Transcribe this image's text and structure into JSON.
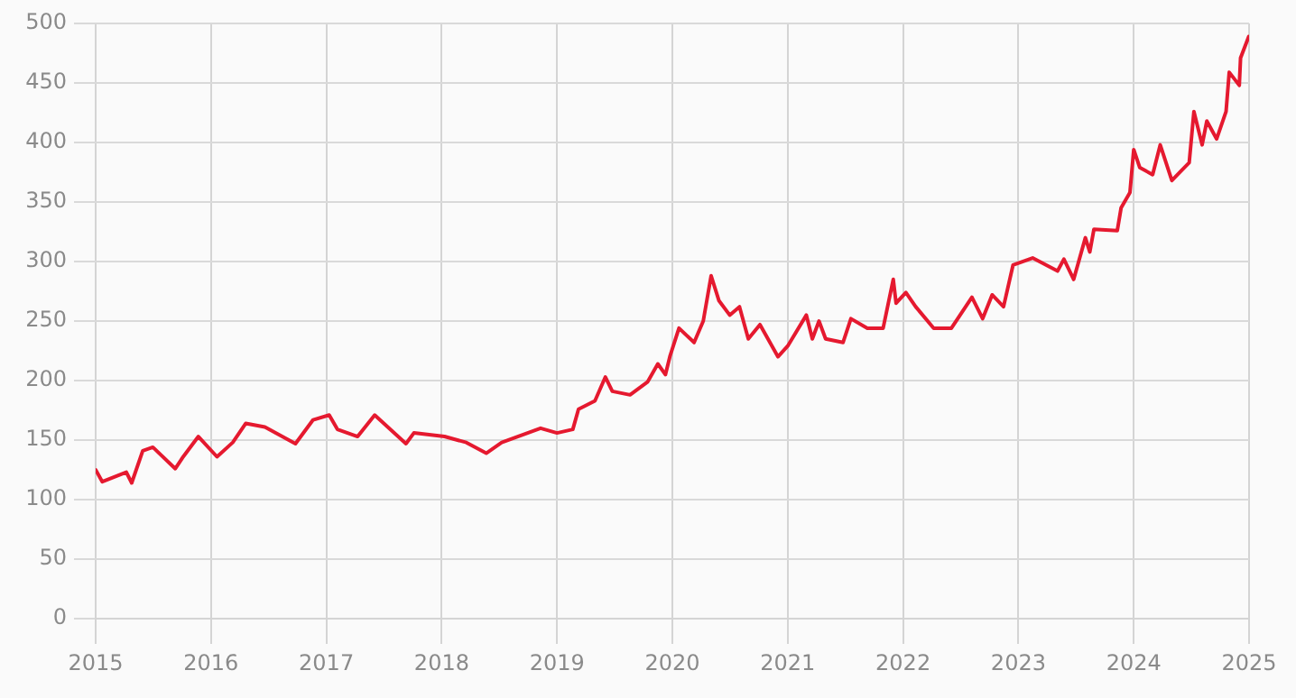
{
  "chart_data": {
    "type": "line",
    "x": [
      "2015-01-01",
      "2015-01-22",
      "2015-04-08",
      "2015-04-25",
      "2015-05-30",
      "2015-07-01",
      "2015-09-10",
      "2015-10-05",
      "2015-11-22",
      "2016-01-20",
      "2016-03-10",
      "2016-04-20",
      "2016-06-20",
      "2016-09-25",
      "2016-11-20",
      "2017-01-10",
      "2017-02-05",
      "2017-04-10",
      "2017-06-03",
      "2017-09-10",
      "2017-10-05",
      "2018-01-10",
      "2018-03-20",
      "2018-05-22",
      "2018-07-10",
      "2018-11-10",
      "2019-01-01",
      "2019-02-20",
      "2019-03-10",
      "2019-05-01",
      "2019-06-03",
      "2019-06-25",
      "2019-08-20",
      "2019-10-15",
      "2019-11-16",
      "2019-12-10",
      "2019-12-25",
      "2020-01-22",
      "2020-03-10",
      "2020-04-08",
      "2020-05-03",
      "2020-05-28",
      "2020-07-01",
      "2020-08-01",
      "2020-08-29",
      "2020-10-05",
      "2020-12-01",
      "2021-01-01",
      "2021-03-01",
      "2021-03-20",
      "2021-04-10",
      "2021-05-01",
      "2021-06-25",
      "2021-07-20",
      "2021-09-10",
      "2021-10-30",
      "2021-12-01",
      "2021-12-10",
      "2022-01-10",
      "2022-02-10",
      "2022-04-08",
      "2022-06-03",
      "2022-08-07",
      "2022-09-10",
      "2022-10-10",
      "2022-11-15",
      "2022-12-15",
      "2023-02-15",
      "2023-05-05",
      "2023-05-25",
      "2023-06-25",
      "2023-08-01",
      "2023-08-15",
      "2023-08-28",
      "2023-11-10",
      "2023-11-22",
      "2023-12-20",
      "2024-01-01",
      "2024-01-20",
      "2024-03-01",
      "2024-03-25",
      "2024-05-01",
      "2024-05-30",
      "2024-06-25",
      "2024-07-10",
      "2024-08-05",
      "2024-08-20",
      "2024-09-20",
      "2024-10-20",
      "2024-10-30",
      "2024-12-01",
      "2024-12-05",
      "2024-12-31"
    ],
    "series": [
      {
        "color": "#e5192f",
        "values": [
          125,
          115,
          123,
          114,
          141,
          144,
          126,
          136,
          153,
          136,
          148,
          164,
          161,
          147,
          167,
          171,
          159,
          153,
          171,
          147,
          156,
          153,
          148,
          139,
          148,
          160,
          156,
          159,
          176,
          183,
          203,
          191,
          188,
          199,
          214,
          205,
          221,
          244,
          232,
          250,
          288,
          267,
          255,
          262,
          235,
          247,
          220,
          229,
          255,
          235,
          250,
          235,
          232,
          252,
          244,
          244,
          285,
          265,
          274,
          262,
          244,
          244,
          270,
          252,
          272,
          262,
          297,
          303,
          292,
          302,
          285,
          320,
          308,
          327,
          326,
          345,
          358,
          394,
          379,
          373,
          398,
          368,
          376,
          383,
          426,
          398,
          418,
          403,
          426,
          459,
          448,
          471,
          489
        ]
      }
    ],
    "xlim": [
      "2015",
      "2025"
    ],
    "xticks": [
      "2015",
      "2016",
      "2017",
      "2018",
      "2019",
      "2020",
      "2021",
      "2022",
      "2023",
      "2024",
      "2025"
    ],
    "ylim": [
      0,
      500
    ],
    "yticks": [
      0,
      50,
      100,
      150,
      200,
      250,
      300,
      350,
      400,
      450,
      500
    ],
    "grid": true,
    "legend": false,
    "marker": "none",
    "line_style": "solid"
  }
}
